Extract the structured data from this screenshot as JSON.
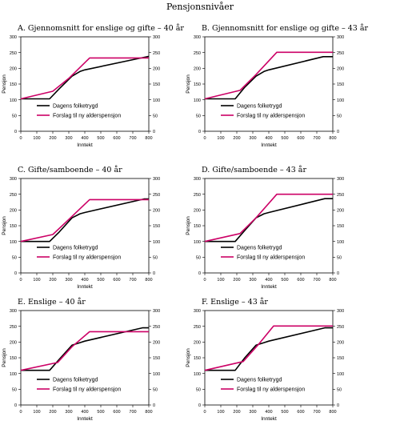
{
  "page_title": "Pensjonsnivåer",
  "chart_data": [
    {
      "type": "line",
      "title": "A. Gjennomsnitt for enslige og gifte – 40 år",
      "xlabel": "Inntekt",
      "ylabel": "Pensjon",
      "xlim": [
        0,
        800
      ],
      "ylim": [
        0,
        300
      ],
      "y2lim": [
        0,
        300
      ],
      "xticks": [
        "0",
        "100",
        "200",
        "300",
        "400",
        "500",
        "600",
        "700",
        "800"
      ],
      "yticks": [
        "0",
        "50",
        "100",
        "150",
        "200",
        "250",
        "300"
      ],
      "grid": false,
      "legend_position": "center-left",
      "series": [
        {
          "name": "Dagens folketrygd",
          "color": "#000000",
          "x": [
            0,
            180,
            240,
            320,
            370,
            400,
            800
          ],
          "y": [
            103,
            103,
            135,
            175,
            190,
            195,
            238
          ]
        },
        {
          "name": "Forslag til ny alderspensjon",
          "color": "#cc0066",
          "x": [
            0,
            200,
            300,
            430,
            800
          ],
          "y": [
            103,
            127,
            168,
            233,
            233
          ]
        }
      ]
    },
    {
      "type": "line",
      "title": "B. Gjennomsnitt for enslige og gifte – 43 år",
      "xlabel": "Inntekt",
      "ylabel": "Pensjon",
      "xlim": [
        0,
        800
      ],
      "ylim": [
        0,
        300
      ],
      "y2lim": [
        0,
        300
      ],
      "xticks": [
        "0",
        "100",
        "200",
        "300",
        "400",
        "500",
        "600",
        "700",
        "800"
      ],
      "yticks": [
        "0",
        "50",
        "100",
        "150",
        "200",
        "250",
        "300"
      ],
      "grid": false,
      "legend_position": "center-left",
      "series": [
        {
          "name": "Dagens folketrygd",
          "color": "#000000",
          "x": [
            0,
            190,
            250,
            320,
            370,
            400,
            740,
            800
          ],
          "y": [
            103,
            103,
            140,
            175,
            190,
            195,
            237,
            237
          ]
        },
        {
          "name": "Forslag til ny alderspensjon",
          "color": "#cc0066",
          "x": [
            0,
            220,
            320,
            450,
            800
          ],
          "y": [
            103,
            130,
            180,
            251,
            251
          ]
        }
      ]
    },
    {
      "type": "line",
      "title": "C. Gifte/samboende – 40 år",
      "xlabel": "Inntekt",
      "ylabel": "Pensjon",
      "xlim": [
        0,
        800
      ],
      "ylim": [
        0,
        300
      ],
      "y2lim": [
        0,
        300
      ],
      "xticks": [
        "0",
        "100",
        "200",
        "300",
        "400",
        "500",
        "600",
        "700",
        "800"
      ],
      "yticks": [
        "0",
        "50",
        "100",
        "150",
        "200",
        "250",
        "300"
      ],
      "grid": false,
      "legend_position": "center-left",
      "series": [
        {
          "name": "Dagens folketrygd",
          "color": "#000000",
          "x": [
            0,
            180,
            240,
            320,
            370,
            400,
            770,
            800
          ],
          "y": [
            100,
            100,
            130,
            175,
            188,
            192,
            235,
            235
          ]
        },
        {
          "name": "Forslag til ny alderspensjon",
          "color": "#cc0066",
          "x": [
            0,
            200,
            290,
            430,
            800
          ],
          "y": [
            100,
            122,
            165,
            233,
            233
          ]
        }
      ]
    },
    {
      "type": "line",
      "title": "D. Gifte/samboende – 43 år",
      "xlabel": "Inntekt",
      "ylabel": "Pensjon",
      "xlim": [
        0,
        800
      ],
      "ylim": [
        0,
        300
      ],
      "y2lim": [
        0,
        300
      ],
      "xticks": [
        "0",
        "100",
        "200",
        "300",
        "400",
        "500",
        "600",
        "700",
        "800"
      ],
      "yticks": [
        "0",
        "50",
        "100",
        "150",
        "200",
        "250",
        "300"
      ],
      "grid": false,
      "legend_position": "center-left",
      "series": [
        {
          "name": "Dagens folketrygd",
          "color": "#000000",
          "x": [
            0,
            190,
            250,
            320,
            370,
            400,
            750,
            800
          ],
          "y": [
            100,
            100,
            135,
            175,
            188,
            192,
            236,
            236
          ]
        },
        {
          "name": "Forslag til ny alderspensjon",
          "color": "#cc0066",
          "x": [
            0,
            220,
            320,
            450,
            800
          ],
          "y": [
            100,
            125,
            175,
            250,
            250
          ]
        }
      ]
    },
    {
      "type": "line",
      "title": "E. Enslige – 40 år",
      "xlabel": "Inntekt",
      "ylabel": "Pensjon",
      "xlim": [
        0,
        800
      ],
      "ylim": [
        0,
        300
      ],
      "y2lim": [
        0,
        300
      ],
      "xticks": [
        "0",
        "100",
        "200",
        "300",
        "400",
        "500",
        "600",
        "700",
        "800"
      ],
      "yticks": [
        "0",
        "50",
        "100",
        "150",
        "200",
        "250",
        "300"
      ],
      "grid": false,
      "legend_position": "center-left",
      "series": [
        {
          "name": "Dagens folketrygd",
          "color": "#000000",
          "x": [
            0,
            180,
            240,
            320,
            370,
            400,
            760,
            800
          ],
          "y": [
            110,
            110,
            145,
            190,
            198,
            203,
            245,
            245
          ]
        },
        {
          "name": "Forslag til ny alderspensjon",
          "color": "#cc0066",
          "x": [
            0,
            230,
            320,
            430,
            800
          ],
          "y": [
            110,
            135,
            185,
            233,
            233
          ]
        }
      ]
    },
    {
      "type": "line",
      "title": "F. Enslige – 43 år",
      "xlabel": "Inntekt",
      "ylabel": "Pensjon",
      "xlim": [
        0,
        800
      ],
      "ylim": [
        0,
        300
      ],
      "y2lim": [
        0,
        300
      ],
      "xticks": [
        "0",
        "100",
        "200",
        "300",
        "400",
        "500",
        "600",
        "700",
        "800"
      ],
      "yticks": [
        "0",
        "50",
        "100",
        "150",
        "200",
        "250",
        "300"
      ],
      "grid": false,
      "legend_position": "center-left",
      "series": [
        {
          "name": "Dagens folketrygd",
          "color": "#000000",
          "x": [
            0,
            190,
            250,
            320,
            370,
            400,
            750,
            800
          ],
          "y": [
            110,
            110,
            150,
            190,
            198,
            203,
            245,
            245
          ]
        },
        {
          "name": "Forslag til ny alderspensjon",
          "color": "#cc0066",
          "x": [
            0,
            240,
            340,
            430,
            800
          ],
          "y": [
            110,
            138,
            195,
            251,
            251
          ]
        }
      ]
    }
  ]
}
